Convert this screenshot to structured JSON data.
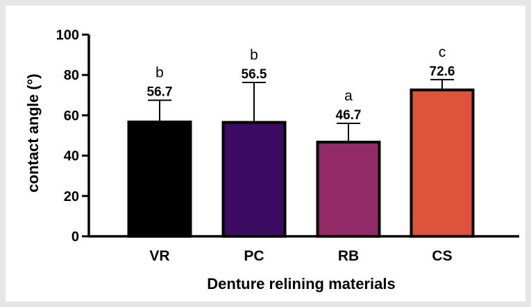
{
  "chart_data": {
    "type": "bar",
    "xlabel": "Denture  relining materials",
    "ylabel": "contact angle (°)",
    "ylim": [
      0,
      100
    ],
    "yticks": [
      0,
      20,
      40,
      60,
      80,
      100
    ],
    "grid": false,
    "categories": [
      "VR",
      "PC",
      "RB",
      "CS"
    ],
    "values": [
      56.7,
      56.5,
      46.7,
      72.6
    ],
    "value_labels": [
      "56.7",
      "56.5",
      "46.7",
      "72.6"
    ],
    "error_upper": [
      10.8,
      19.8,
      9.3,
      5.1
    ],
    "significance_letters": [
      "b",
      "b",
      "a",
      "c"
    ],
    "colors": [
      "#000000",
      "#3c0c62",
      "#922a67",
      "#de533b"
    ]
  }
}
